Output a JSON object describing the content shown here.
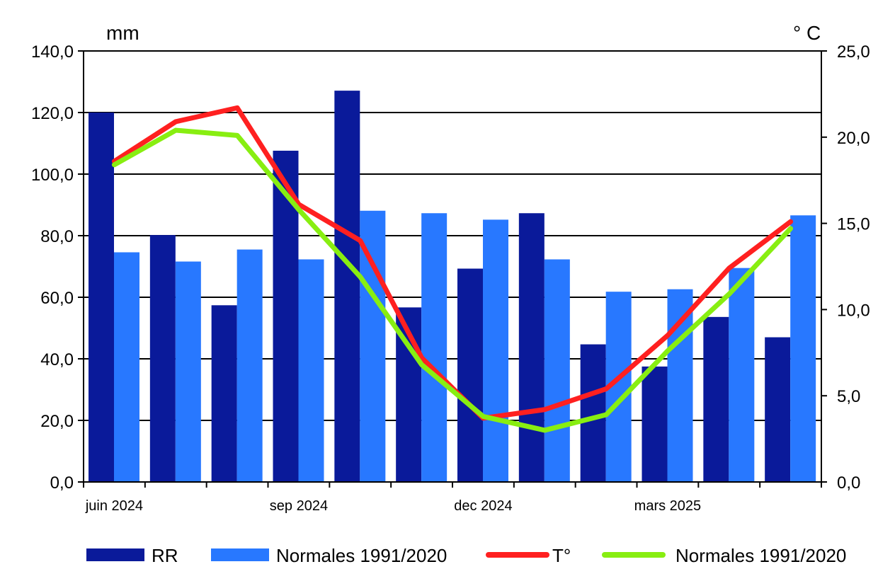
{
  "chart_data": {
    "type": "bar",
    "left_axis_unit": "mm",
    "right_axis_unit": "° C",
    "categories": [
      "",
      "",
      "",
      "",
      "",
      "",
      "",
      "",
      "",
      "",
      "",
      ""
    ],
    "x_tick_labels": [
      {
        "index": 0,
        "text": "juin 2024"
      },
      {
        "index": 3,
        "text": "sep 2024"
      },
      {
        "index": 6,
        "text": "dec 2024"
      },
      {
        "index": 9,
        "text": "mars 2025"
      }
    ],
    "y_left": {
      "min": 0,
      "max": 140,
      "step": 20,
      "tick_labels": [
        "0,0",
        "20,0",
        "40,0",
        "60,0",
        "80,0",
        "100,0",
        "120,0",
        "140,0"
      ]
    },
    "y_right": {
      "min": 0,
      "max": 25,
      "step": 5,
      "tick_labels": [
        "0,0",
        "5,0",
        "10,0",
        "15,0",
        "20,0",
        "25,0"
      ]
    },
    "grid": true,
    "legend_position": "bottom",
    "bar_series": [
      {
        "name": "RR",
        "color": "#0a1a9a",
        "values": [
          120.0,
          80.2,
          57.4,
          107.6,
          127.1,
          56.7,
          69.3,
          87.3,
          44.7,
          37.5,
          53.6,
          47.0
        ]
      },
      {
        "name": "Normales 1991/2020",
        "color": "#2878ff",
        "values": [
          74.6,
          71.6,
          75.5,
          72.3,
          88.1,
          87.3,
          85.2,
          72.3,
          61.8,
          62.6,
          69.5,
          86.6
        ]
      }
    ],
    "line_series": [
      {
        "name": "T°",
        "color": "#ff2020",
        "axis": "right",
        "values": [
          18.6,
          20.9,
          21.7,
          16.1,
          14.0,
          7.2,
          3.7,
          4.2,
          5.4,
          8.5,
          12.4,
          15.1
        ]
      },
      {
        "name": "Normales 1991/2020",
        "color": "#88ee11",
        "axis": "right",
        "values": [
          18.4,
          20.4,
          20.1,
          15.8,
          11.9,
          6.8,
          3.8,
          3.0,
          3.9,
          7.6,
          10.9,
          14.7
        ]
      }
    ]
  }
}
